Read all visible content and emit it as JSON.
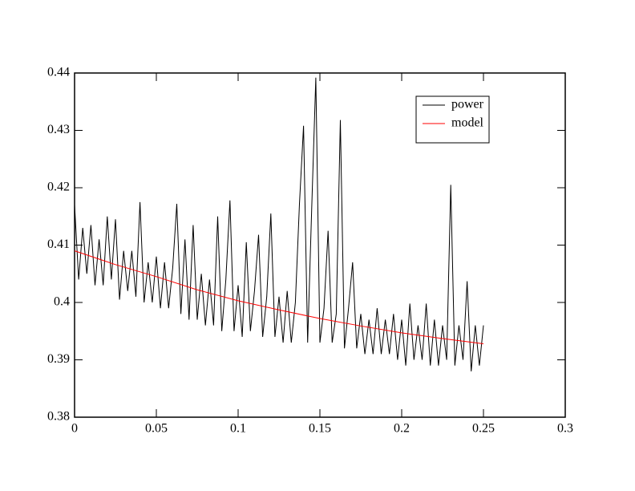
{
  "chart_data": {
    "type": "line",
    "x": [
      0,
      0.0025,
      0.005,
      0.0075,
      0.01,
      0.0125,
      0.015,
      0.0175,
      0.02,
      0.0225,
      0.025,
      0.0275,
      0.03,
      0.0325,
      0.035,
      0.0375,
      0.04,
      0.0425,
      0.045,
      0.0475,
      0.05,
      0.0525,
      0.055,
      0.0575,
      0.06,
      0.0625,
      0.065,
      0.0675,
      0.07,
      0.0725,
      0.075,
      0.0775,
      0.08,
      0.0825,
      0.085,
      0.0875,
      0.09,
      0.0925,
      0.095,
      0.0975,
      0.1,
      0.1025,
      0.105,
      0.1075,
      0.11,
      0.1125,
      0.115,
      0.1175,
      0.12,
      0.1225,
      0.125,
      0.1275,
      0.13,
      0.1325,
      0.135,
      0.1375,
      0.14,
      0.1425,
      0.145,
      0.1475,
      0.15,
      0.1525,
      0.155,
      0.1575,
      0.16,
      0.1625,
      0.165,
      0.1675,
      0.17,
      0.1725,
      0.175,
      0.1775,
      0.18,
      0.1825,
      0.185,
      0.1875,
      0.19,
      0.1925,
      0.195,
      0.1975,
      0.2,
      0.2025,
      0.205,
      0.2075,
      0.21,
      0.2125,
      0.215,
      0.2175,
      0.22,
      0.2225,
      0.225,
      0.2275,
      0.23,
      0.2325,
      0.235,
      0.2375,
      0.24,
      0.2425,
      0.245,
      0.2475,
      0.25
    ],
    "series": [
      {
        "name": "power",
        "color": "#000000",
        "values": [
          0.417,
          0.404,
          0.413,
          0.405,
          0.4135,
          0.403,
          0.411,
          0.403,
          0.415,
          0.404,
          0.4145,
          0.4005,
          0.409,
          0.402,
          0.409,
          0.401,
          0.4175,
          0.4,
          0.407,
          0.4,
          0.408,
          0.399,
          0.407,
          0.399,
          0.406,
          0.4172,
          0.398,
          0.411,
          0.397,
          0.4135,
          0.397,
          0.405,
          0.396,
          0.404,
          0.396,
          0.415,
          0.395,
          0.404,
          0.4178,
          0.395,
          0.403,
          0.394,
          0.4105,
          0.395,
          0.402,
          0.4118,
          0.394,
          0.401,
          0.4155,
          0.394,
          0.401,
          0.393,
          0.402,
          0.393,
          0.4,
          0.4172,
          0.4308,
          0.393,
          0.4165,
          0.4392,
          0.393,
          0.399,
          0.4125,
          0.393,
          0.398,
          0.4318,
          0.392,
          0.399,
          0.407,
          0.392,
          0.398,
          0.391,
          0.397,
          0.391,
          0.399,
          0.391,
          0.397,
          0.391,
          0.398,
          0.39,
          0.397,
          0.389,
          0.3998,
          0.39,
          0.396,
          0.39,
          0.3998,
          0.389,
          0.397,
          0.389,
          0.396,
          0.39,
          0.4205,
          0.389,
          0.396,
          0.39,
          0.4037,
          0.388,
          0.396,
          0.389,
          0.396
        ]
      },
      {
        "name": "model",
        "color": "#ff0000",
        "x": [
          0,
          0.025,
          0.05,
          0.075,
          0.1,
          0.125,
          0.15,
          0.175,
          0.2,
          0.225,
          0.25
        ],
        "values": [
          0.409,
          0.4066,
          0.4045,
          0.4022,
          0.4003,
          0.3987,
          0.3972,
          0.3959,
          0.3947,
          0.3937,
          0.3928
        ]
      }
    ],
    "xlim": [
      0,
      0.3
    ],
    "xticks": [
      0,
      0.05,
      0.1,
      0.15,
      0.2,
      0.25,
      0.3
    ],
    "ylim": [
      0.38,
      0.44
    ],
    "yticks": [
      0.38,
      0.39,
      0.4,
      0.41,
      0.42,
      0.43,
      0.44
    ],
    "legend": "upper-right"
  }
}
